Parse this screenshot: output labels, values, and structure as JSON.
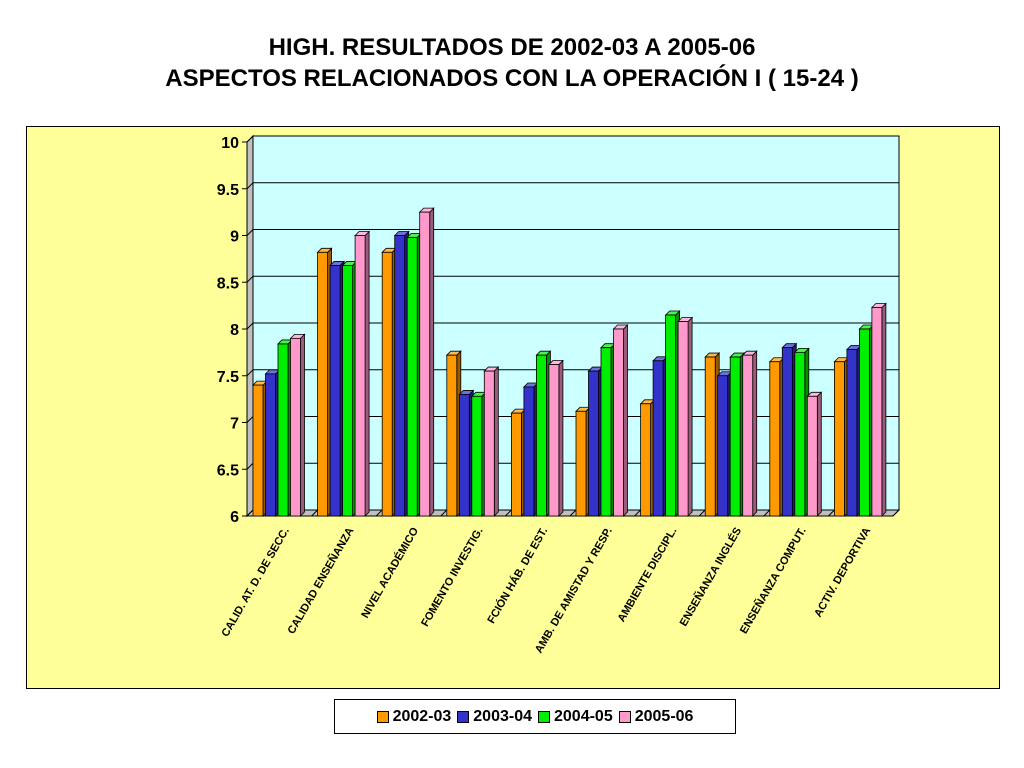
{
  "title_line1": "HIGH. RESULTADOS DE 2002-03  A  2005-06",
  "title_line2": "ASPECTOS RELACIONADOS CON LA OPERACIÓN  I ( 15-24 )",
  "chart_data": {
    "type": "bar",
    "title": "HIGH. RESULTADOS DE 2002-03 A 2005-06 — ASPECTOS RELACIONADOS CON LA OPERACIÓN I ( 15-24 )",
    "categories": [
      "CALID. AT. D. DE SECC.",
      "CALIDAD ENSEÑANZA",
      "NIVEL ACADÉMICO",
      "FOMENTO INVESTIG.",
      "FCIÓN HÁB. DE EST.",
      "AMB. DE AMISTAD Y RESP.",
      "AMBIENTE DISCIPL.",
      "ENSEÑANZA INGLÉS",
      "ENSEÑANZA COMPUT.",
      "ACTIV. DEPORTIVA"
    ],
    "series": [
      {
        "name": "2002-03",
        "color": "#ff9900",
        "values": [
          7.4,
          8.82,
          8.82,
          7.72,
          7.1,
          7.12,
          7.2,
          7.7,
          7.65,
          7.65
        ]
      },
      {
        "name": "2003-04",
        "color": "#3333cc",
        "values": [
          7.52,
          8.68,
          9.0,
          7.3,
          7.38,
          7.55,
          7.66,
          7.5,
          7.8,
          7.78
        ]
      },
      {
        "name": "2004-05",
        "color": "#00ee00",
        "values": [
          7.84,
          8.68,
          8.98,
          7.28,
          7.72,
          7.8,
          8.15,
          7.7,
          7.75,
          8.0
        ]
      },
      {
        "name": "2005-06",
        "color": "#ff99cc",
        "values": [
          7.9,
          9.0,
          9.25,
          7.55,
          7.62,
          8.0,
          8.08,
          7.72,
          7.28,
          8.23
        ]
      }
    ],
    "xlabel": "",
    "ylabel": "",
    "ylim": [
      6,
      10
    ],
    "yticks": [
      "6",
      "6.5",
      "7",
      "7.5",
      "8",
      "8.5",
      "9",
      "9.5",
      "10"
    ],
    "grid": true,
    "plot_background": "#ccffff",
    "panel_background": "#ffff99",
    "legend_position": "bottom"
  }
}
